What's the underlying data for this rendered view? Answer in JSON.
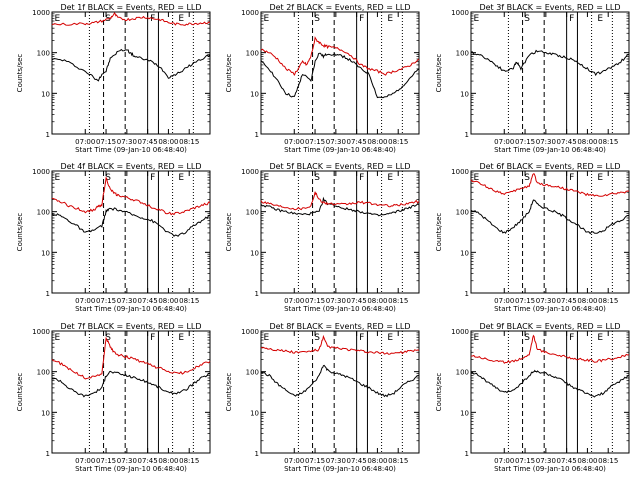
{
  "chart_data": [
    {
      "type": "line",
      "title": "Det 1f BLACK = Events, RED = LLD",
      "xlabel": "Start Time (09-Jan-10 06:48:40)",
      "ylabel": "Counts/sec",
      "yscale": "log",
      "ylim": [
        1,
        1000
      ],
      "xlim": [
        6.6,
        8.5
      ],
      "xticks": [
        "07:00",
        "07:15",
        "07:30",
        "07:45",
        "08:00",
        "08:15"
      ],
      "yticks": [
        "1",
        "10",
        "100",
        "1000"
      ],
      "zone_labels": [
        "E",
        "S",
        "F",
        "E"
      ],
      "series": [
        {
          "color": "#000000",
          "x": [
            6.6,
            6.75,
            6.9,
            7.05,
            7.15,
            7.2,
            7.25,
            7.3,
            7.4,
            7.5,
            7.55,
            7.6,
            7.7,
            7.8,
            7.9,
            8.0,
            8.1,
            8.2,
            8.3,
            8.4,
            8.5
          ],
          "y": [
            70,
            65,
            45,
            30,
            20,
            30,
            35,
            70,
            110,
            120,
            95,
            80,
            70,
            60,
            45,
            25,
            30,
            40,
            55,
            70,
            90
          ]
        },
        {
          "color": "#d40000",
          "x": [
            6.6,
            6.8,
            7.0,
            7.1,
            7.2,
            7.3,
            7.35,
            7.4,
            7.5,
            7.6,
            7.7,
            7.8,
            7.9,
            8.0,
            8.1,
            8.2,
            8.3,
            8.4,
            8.5
          ],
          "y": [
            500,
            500,
            520,
            540,
            600,
            700,
            900,
            700,
            650,
            700,
            750,
            700,
            650,
            550,
            500,
            500,
            520,
            540,
            560
          ]
        }
      ]
    },
    {
      "type": "line",
      "title": "Det 2f BLACK = Events, RED = LLD",
      "xlabel": "Start Time (09-Jan-10 06:48:40)",
      "ylabel": "Counts/sec",
      "yscale": "log",
      "ylim": [
        1,
        1000
      ],
      "xlim": [
        6.6,
        8.5
      ],
      "xticks": [
        "07:00",
        "07:15",
        "07:30",
        "07:45",
        "08:00",
        "08:15"
      ],
      "yticks": [
        "1",
        "10",
        "100",
        "1000"
      ],
      "zone_labels": [
        "E",
        "S",
        "F",
        "E"
      ],
      "series": [
        {
          "color": "#000000",
          "x": [
            6.6,
            6.7,
            6.8,
            6.9,
            7.0,
            7.05,
            7.1,
            7.2,
            7.25,
            7.3,
            7.35,
            7.4,
            7.5,
            7.6,
            7.7,
            7.8,
            7.9,
            8.0,
            8.1,
            8.2,
            8.3,
            8.4,
            8.5
          ],
          "y": [
            60,
            40,
            20,
            10,
            8,
            15,
            30,
            20,
            60,
            100,
            80,
            95,
            90,
            80,
            60,
            40,
            30,
            8,
            8,
            10,
            15,
            25,
            40
          ]
        },
        {
          "color": "#d40000",
          "x": [
            6.6,
            6.7,
            6.8,
            6.9,
            7.0,
            7.05,
            7.1,
            7.15,
            7.2,
            7.25,
            7.3,
            7.35,
            7.4,
            7.5,
            7.6,
            7.7,
            7.8,
            7.9,
            8.0,
            8.1,
            8.2,
            8.3,
            8.4,
            8.5
          ],
          "y": [
            120,
            100,
            70,
            40,
            30,
            40,
            60,
            50,
            80,
            220,
            180,
            150,
            140,
            130,
            110,
            80,
            50,
            40,
            35,
            30,
            35,
            40,
            50,
            70
          ]
        }
      ]
    },
    {
      "type": "line",
      "title": "Det 3f BLACK = Events, RED = LLD",
      "xlabel": "Start Time (09-Jan-10 06:48:40)",
      "ylabel": "Counts/sec",
      "yscale": "log",
      "ylim": [
        1,
        1000
      ],
      "xlim": [
        6.6,
        8.5
      ],
      "xticks": [
        "07:00",
        "07:15",
        "07:30",
        "07:45",
        "08:00",
        "08:15"
      ],
      "yticks": [
        "1",
        "10",
        "100",
        "1000"
      ],
      "zone_labels": [
        "E",
        "S",
        "F",
        "E"
      ],
      "series": [
        {
          "color": "#000000",
          "x": [
            6.6,
            6.7,
            6.8,
            6.9,
            7.0,
            7.1,
            7.15,
            7.2,
            7.3,
            7.4,
            7.5,
            7.6,
            7.7,
            7.8,
            7.9,
            8.0,
            8.1,
            8.2,
            8.3,
            8.4,
            8.5
          ],
          "y": [
            100,
            90,
            70,
            50,
            35,
            40,
            60,
            40,
            90,
            110,
            100,
            90,
            80,
            70,
            55,
            40,
            30,
            35,
            45,
            60,
            90
          ]
        }
      ]
    },
    {
      "type": "line",
      "title": "Det 4f BLACK = Events, RED = LLD",
      "xlabel": "Start Time (09-Jan-10 06:48:40)",
      "ylabel": "Counts/sec",
      "yscale": "log",
      "ylim": [
        1,
        1000
      ],
      "xlim": [
        6.6,
        8.5
      ],
      "xticks": [
        "07:00",
        "07:15",
        "07:30",
        "07:45",
        "08:00",
        "08:15"
      ],
      "yticks": [
        "1",
        "10",
        "100",
        "1000"
      ],
      "zone_labels": [
        "E",
        "S",
        "F",
        "E"
      ],
      "series": [
        {
          "color": "#000000",
          "x": [
            6.6,
            6.7,
            6.8,
            6.9,
            7.0,
            7.1,
            7.2,
            7.25,
            7.3,
            7.4,
            7.5,
            7.6,
            7.7,
            7.8,
            7.9,
            8.0,
            8.1,
            8.2,
            8.3,
            8.4,
            8.5
          ],
          "y": [
            90,
            80,
            60,
            45,
            30,
            35,
            45,
            100,
            120,
            110,
            95,
            80,
            70,
            60,
            45,
            30,
            25,
            30,
            45,
            60,
            80
          ]
        },
        {
          "color": "#d40000",
          "x": [
            6.6,
            6.7,
            6.8,
            6.9,
            7.0,
            7.1,
            7.15,
            7.2,
            7.25,
            7.3,
            7.35,
            7.4,
            7.5,
            7.6,
            7.7,
            7.8,
            7.9,
            8.0,
            8.1,
            8.2,
            8.3,
            8.4,
            8.5
          ],
          "y": [
            200,
            180,
            140,
            120,
            100,
            110,
            130,
            150,
            700,
            350,
            280,
            250,
            220,
            190,
            160,
            130,
            110,
            90,
            90,
            100,
            120,
            140,
            170
          ]
        }
      ]
    },
    {
      "type": "line",
      "title": "Det 5f BLACK = Events, RED = LLD",
      "xlabel": "Start Time (09-Jan-10 06:48:40)",
      "ylabel": "Counts/sec",
      "yscale": "log",
      "ylim": [
        1,
        1000
      ],
      "xlim": [
        6.6,
        8.5
      ],
      "xticks": [
        "07:00",
        "07:15",
        "07:30",
        "07:45",
        "08:00",
        "08:15"
      ],
      "yticks": [
        "1",
        "10",
        "100",
        "1000"
      ],
      "zone_labels": [
        "E",
        "S",
        "F",
        "E"
      ],
      "series": [
        {
          "color": "#000000",
          "x": [
            6.6,
            6.7,
            6.8,
            6.9,
            7.0,
            7.1,
            7.2,
            7.3,
            7.35,
            7.4,
            7.5,
            7.6,
            7.7,
            7.8,
            7.9,
            8.0,
            8.1,
            8.2,
            8.3,
            8.4,
            8.5
          ],
          "y": [
            150,
            130,
            110,
            100,
            90,
            85,
            90,
            100,
            200,
            160,
            140,
            120,
            110,
            100,
            90,
            80,
            85,
            95,
            110,
            130,
            150
          ]
        },
        {
          "color": "#d40000",
          "x": [
            6.6,
            6.7,
            6.8,
            6.9,
            7.0,
            7.1,
            7.2,
            7.25,
            7.3,
            7.35,
            7.4,
            7.5,
            7.6,
            7.7,
            7.8,
            7.9,
            8.0,
            8.1,
            8.2,
            8.3,
            8.4,
            8.5
          ],
          "y": [
            180,
            160,
            140,
            130,
            120,
            120,
            140,
            300,
            200,
            170,
            160,
            150,
            150,
            160,
            170,
            160,
            150,
            140,
            140,
            150,
            165,
            180
          ]
        }
      ]
    },
    {
      "type": "line",
      "title": "Det 6f BLACK = Events, RED = LLD",
      "xlabel": "Start Time (09-Jan-10 06:48:40)",
      "ylabel": "Counts/sec",
      "yscale": "log",
      "ylim": [
        1,
        1000
      ],
      "xlim": [
        6.6,
        8.5
      ],
      "xticks": [
        "07:00",
        "07:15",
        "07:30",
        "07:45",
        "08:00",
        "08:15"
      ],
      "yticks": [
        "1",
        "10",
        "100",
        "1000"
      ],
      "zone_labels": [
        "E",
        "S",
        "F",
        "E"
      ],
      "series": [
        {
          "color": "#000000",
          "x": [
            6.6,
            6.7,
            6.8,
            6.9,
            7.0,
            7.1,
            7.2,
            7.3,
            7.35,
            7.4,
            7.5,
            7.6,
            7.7,
            7.8,
            7.9,
            8.0,
            8.1,
            8.2,
            8.3,
            8.4,
            8.5
          ],
          "y": [
            110,
            90,
            60,
            40,
            30,
            40,
            60,
            100,
            200,
            150,
            120,
            100,
            80,
            60,
            45,
            30,
            30,
            35,
            50,
            60,
            80
          ]
        },
        {
          "color": "#d40000",
          "x": [
            6.6,
            6.7,
            6.8,
            6.9,
            7.0,
            7.1,
            7.2,
            7.3,
            7.35,
            7.4,
            7.5,
            7.6,
            7.7,
            7.8,
            7.9,
            8.0,
            8.1,
            8.2,
            8.3,
            8.4,
            8.5
          ],
          "y": [
            600,
            500,
            400,
            320,
            280,
            300,
            380,
            420,
            900,
            500,
            450,
            420,
            380,
            340,
            300,
            260,
            240,
            250,
            270,
            290,
            320
          ]
        }
      ]
    },
    {
      "type": "line",
      "title": "Det 7f BLACK = Events, RED = LLD",
      "xlabel": "Start Time (09-Jan-10 06:48:40)",
      "ylabel": "Counts/sec",
      "yscale": "log",
      "ylim": [
        1,
        1000
      ],
      "xlim": [
        6.6,
        8.5
      ],
      "xticks": [
        "07:00",
        "07:15",
        "07:30",
        "07:45",
        "08:00",
        "08:15"
      ],
      "yticks": [
        "1",
        "10",
        "100",
        "1000"
      ],
      "zone_labels": [
        "E",
        "S",
        "F",
        "E"
      ],
      "series": [
        {
          "color": "#000000",
          "x": [
            6.6,
            6.7,
            6.8,
            6.9,
            7.0,
            7.1,
            7.2,
            7.25,
            7.3,
            7.4,
            7.5,
            7.6,
            7.7,
            7.8,
            7.9,
            8.0,
            8.1,
            8.2,
            8.3,
            8.4,
            8.5
          ],
          "y": [
            70,
            60,
            40,
            30,
            25,
            30,
            40,
            80,
            100,
            90,
            80,
            70,
            60,
            50,
            40,
            30,
            30,
            35,
            50,
            70,
            90
          ]
        },
        {
          "color": "#d40000",
          "x": [
            6.6,
            6.7,
            6.8,
            6.9,
            7.0,
            7.1,
            7.2,
            7.25,
            7.3,
            7.35,
            7.4,
            7.5,
            7.6,
            7.7,
            7.8,
            7.9,
            8.0,
            8.1,
            8.2,
            8.3,
            8.4,
            8.5
          ],
          "y": [
            200,
            160,
            120,
            90,
            70,
            75,
            90,
            700,
            400,
            300,
            260,
            230,
            200,
            170,
            140,
            120,
            100,
            90,
            95,
            120,
            150,
            180
          ]
        }
      ]
    },
    {
      "type": "line",
      "title": "Det 8f BLACK = Events, RED = LLD",
      "xlabel": "Start Time (09-Jan-10 06:48:40)",
      "ylabel": "Counts/sec",
      "yscale": "log",
      "ylim": [
        1,
        1000
      ],
      "xlim": [
        6.6,
        8.5
      ],
      "xticks": [
        "07:00",
        "07:15",
        "07:30",
        "07:45",
        "08:00",
        "08:15"
      ],
      "yticks": [
        "1",
        "10",
        "100",
        "1000"
      ],
      "zone_labels": [
        "E",
        "S",
        "F",
        "E"
      ],
      "series": [
        {
          "color": "#000000",
          "x": [
            6.6,
            6.7,
            6.8,
            6.9,
            7.0,
            7.1,
            7.2,
            7.3,
            7.35,
            7.4,
            7.5,
            7.6,
            7.7,
            7.8,
            7.9,
            8.0,
            8.1,
            8.2,
            8.3,
            8.4,
            8.5
          ],
          "y": [
            100,
            80,
            50,
            35,
            25,
            30,
            45,
            80,
            150,
            110,
            90,
            80,
            65,
            50,
            40,
            30,
            25,
            30,
            45,
            60,
            80
          ]
        },
        {
          "color": "#d40000",
          "x": [
            6.6,
            6.7,
            6.8,
            6.9,
            7.0,
            7.1,
            7.2,
            7.3,
            7.35,
            7.4,
            7.5,
            7.6,
            7.7,
            7.8,
            7.9,
            8.0,
            8.1,
            8.2,
            8.3,
            8.4,
            8.5
          ],
          "y": [
            400,
            370,
            340,
            320,
            300,
            300,
            320,
            350,
            700,
            420,
            380,
            360,
            340,
            320,
            300,
            290,
            280,
            290,
            300,
            320,
            340
          ]
        }
      ]
    },
    {
      "type": "line",
      "title": "Det 9f BLACK = Events, RED = LLD",
      "xlabel": "Start Time (09-Jan-10 06:48:40)",
      "ylabel": "Counts/sec",
      "yscale": "log",
      "ylim": [
        1,
        1000
      ],
      "xlim": [
        6.6,
        8.5
      ],
      "xticks": [
        "07:00",
        "07:15",
        "07:30",
        "07:45",
        "08:00",
        "08:15"
      ],
      "yticks": [
        "1",
        "10",
        "100",
        "1000"
      ],
      "zone_labels": [
        "E",
        "S",
        "F",
        "E"
      ],
      "series": [
        {
          "color": "#000000",
          "x": [
            6.6,
            6.7,
            6.8,
            6.9,
            7.0,
            7.1,
            7.2,
            7.3,
            7.35,
            7.4,
            7.5,
            7.6,
            7.7,
            7.8,
            7.9,
            8.0,
            8.1,
            8.2,
            8.3,
            8.4,
            8.5
          ],
          "y": [
            100,
            80,
            55,
            40,
            30,
            35,
            50,
            80,
            100,
            100,
            90,
            75,
            60,
            45,
            35,
            28,
            25,
            30,
            45,
            60,
            80
          ]
        },
        {
          "color": "#d40000",
          "x": [
            6.6,
            6.7,
            6.8,
            6.9,
            7.0,
            7.1,
            7.2,
            7.3,
            7.35,
            7.4,
            7.5,
            7.6,
            7.7,
            7.8,
            7.9,
            8.0,
            8.1,
            8.2,
            8.3,
            8.4,
            8.5
          ],
          "y": [
            250,
            230,
            200,
            180,
            170,
            180,
            210,
            260,
            800,
            350,
            300,
            270,
            240,
            220,
            200,
            190,
            180,
            190,
            210,
            230,
            260
          ]
        }
      ]
    }
  ]
}
